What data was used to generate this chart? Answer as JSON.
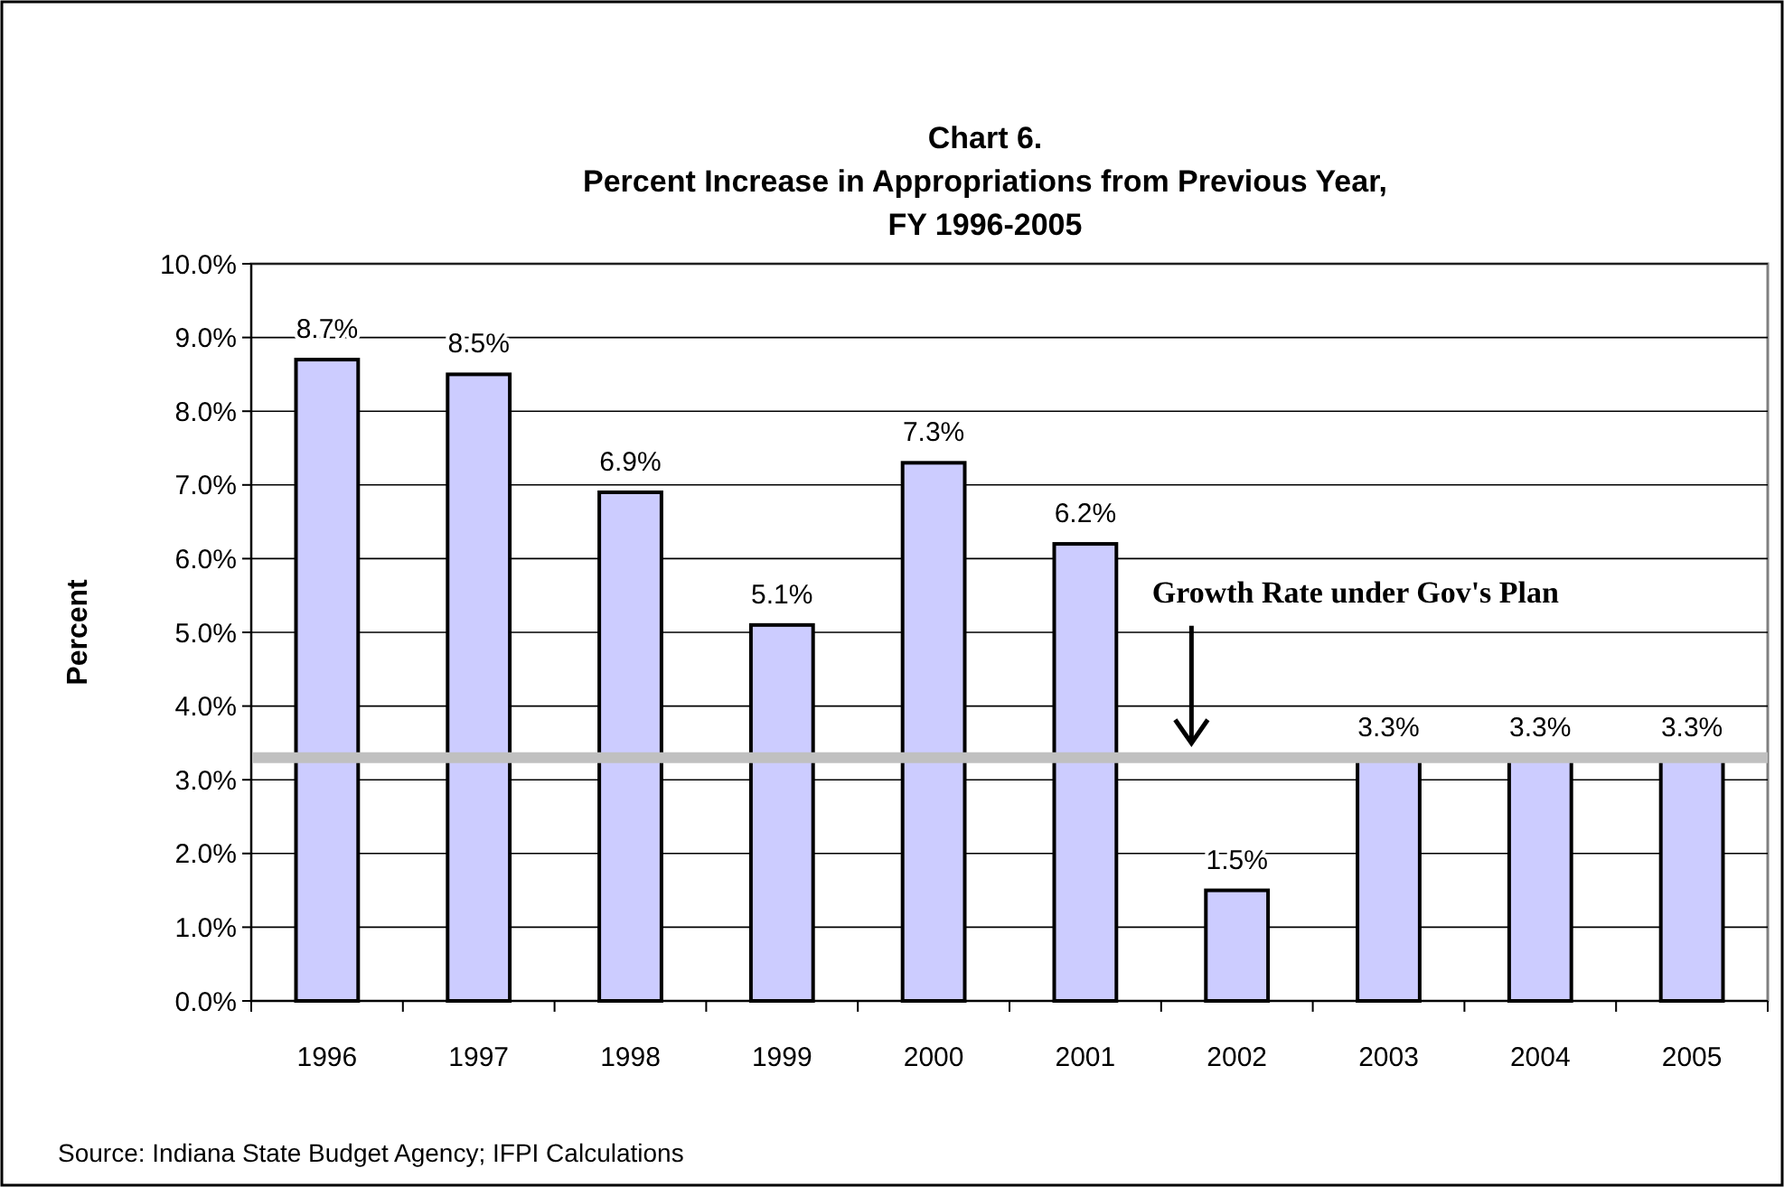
{
  "chart_data": {
    "type": "bar",
    "title": "Chart 6.\nPercent Increase in Appropriations from Previous Year,\nFY 1996-2005",
    "ylabel": "Percent",
    "categories": [
      "1996",
      "1997",
      "1998",
      "1999",
      "2000",
      "2001",
      "2002",
      "2003",
      "2004",
      "2005"
    ],
    "values": [
      8.7,
      8.5,
      6.9,
      5.1,
      7.3,
      6.2,
      1.5,
      3.3,
      3.3,
      3.3
    ],
    "value_labels": [
      "8.7%",
      "8.5%",
      "6.9%",
      "5.1%",
      "7.3%",
      "6.2%",
      "1.5%",
      "3.3%",
      "3.3%",
      "3.3%"
    ],
    "color": "#ccccff",
    "ylim": [
      0,
      10
    ],
    "yticks": [
      {
        "value": 0,
        "label": "0.0%"
      },
      {
        "value": 1,
        "label": "1.0%"
      },
      {
        "value": 2,
        "label": "2.0%"
      },
      {
        "value": 3,
        "label": "3.0%"
      },
      {
        "value": 4,
        "label": "4.0%"
      },
      {
        "value": 5,
        "label": "5.0%"
      },
      {
        "value": 6,
        "label": "6.0%"
      },
      {
        "value": 7,
        "label": "7.0%"
      },
      {
        "value": 8,
        "label": "8.0%"
      },
      {
        "value": 9,
        "label": "9.0%"
      },
      {
        "value": 10,
        "label": "10.0%"
      }
    ],
    "grid": "y",
    "ref_lines": [
      {
        "axis": "y",
        "value": 3.3,
        "label": "Growth Rate under Gov's Plan",
        "color": "#c0c0c0"
      }
    ],
    "annotations": [
      "Source: Indiana State Budget Agency; IFPI Calculations"
    ]
  }
}
